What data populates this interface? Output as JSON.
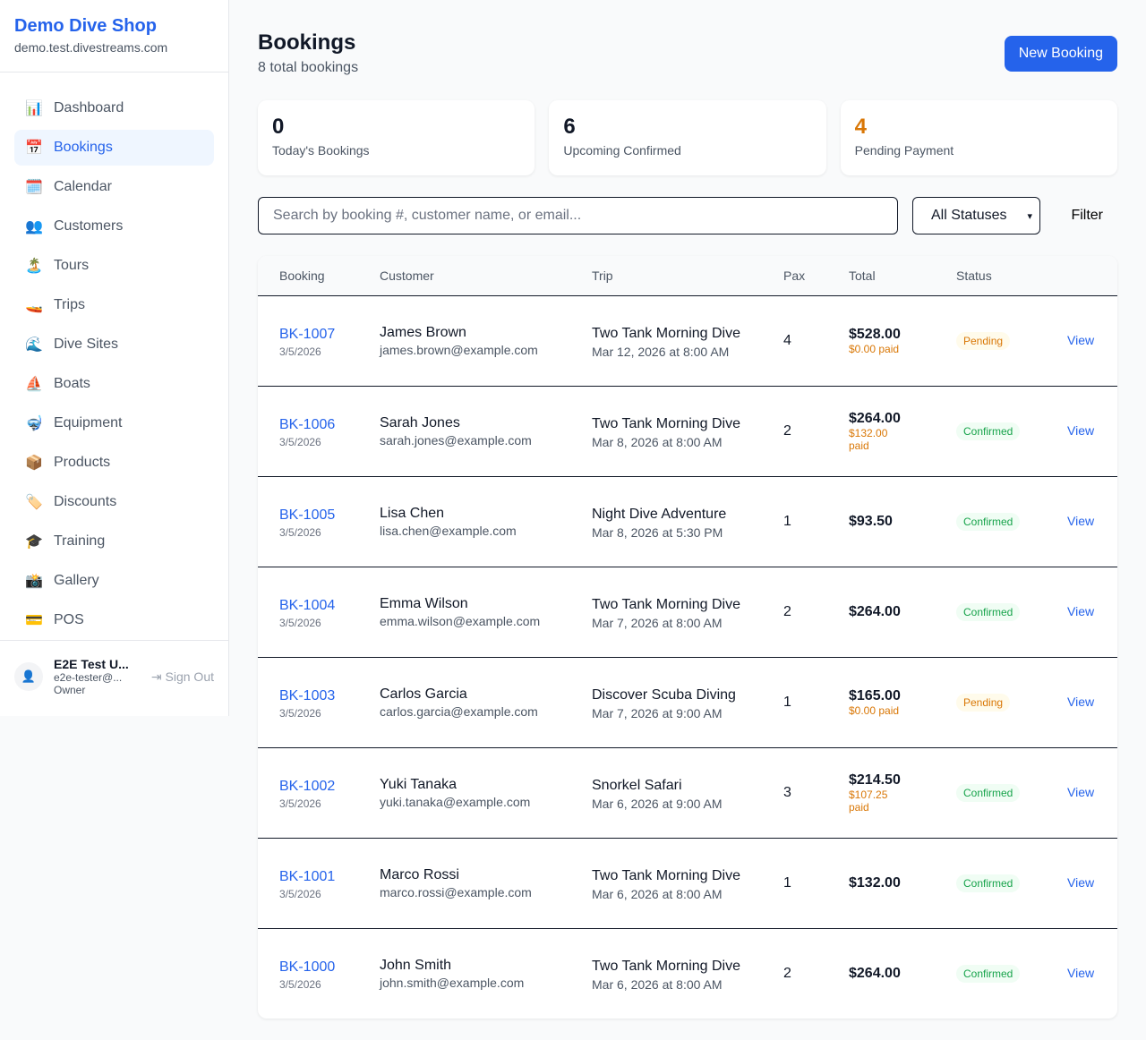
{
  "sidebar": {
    "shop_name": "Demo Dive Shop",
    "domain": "demo.test.divestreams.com",
    "items": [
      {
        "label": "Dashboard",
        "icon": "📊",
        "active": false
      },
      {
        "label": "Bookings",
        "icon": "📅",
        "active": true
      },
      {
        "label": "Calendar",
        "icon": "🗓️",
        "active": false
      },
      {
        "label": "Customers",
        "icon": "👥",
        "active": false
      },
      {
        "label": "Tours",
        "icon": "🏝️",
        "active": false
      },
      {
        "label": "Trips",
        "icon": "🚤",
        "active": false
      },
      {
        "label": "Dive Sites",
        "icon": "🌊",
        "active": false
      },
      {
        "label": "Boats",
        "icon": "⛵",
        "active": false
      },
      {
        "label": "Equipment",
        "icon": "🤿",
        "active": false
      },
      {
        "label": "Products",
        "icon": "📦",
        "active": false
      },
      {
        "label": "Discounts",
        "icon": "🏷️",
        "active": false
      },
      {
        "label": "Training",
        "icon": "🎓",
        "active": false
      },
      {
        "label": "Gallery",
        "icon": "📸",
        "active": false
      },
      {
        "label": "POS",
        "icon": "💳",
        "active": false
      }
    ],
    "user": {
      "name": "E2E Test U...",
      "email": "e2e-tester@...",
      "role": "Owner",
      "sign_out": "Sign Out"
    }
  },
  "header": {
    "title": "Bookings",
    "subtitle": "8 total bookings",
    "new_booking": "New Booking"
  },
  "stats": [
    {
      "value": "0",
      "label": "Today's Bookings",
      "color": "#111827"
    },
    {
      "value": "6",
      "label": "Upcoming Confirmed",
      "color": "#111827"
    },
    {
      "value": "4",
      "label": "Pending Payment",
      "color": "#d97706"
    }
  ],
  "filters": {
    "search_placeholder": "Search by booking #, customer name, or email...",
    "status": "All Statuses",
    "filter": "Filter"
  },
  "table": {
    "columns": [
      "Booking",
      "Customer",
      "Trip",
      "Pax",
      "Total",
      "Status",
      ""
    ],
    "rows": [
      {
        "id": "BK-1007",
        "date": "3/5/2026",
        "name": "James Brown",
        "email": "james.brown@example.com",
        "trip": "Two Tank Morning Dive",
        "when": "Mar 12, 2026 at 8:00 AM",
        "pax": "4",
        "total": "$528.00",
        "paid": "$0.00 paid",
        "status": "Pending",
        "action": "View"
      },
      {
        "id": "BK-1006",
        "date": "3/5/2026",
        "name": "Sarah Jones",
        "email": "sarah.jones@example.com",
        "trip": "Two Tank Morning Dive",
        "when": "Mar 8, 2026 at 8:00 AM",
        "pax": "2",
        "total": "$264.00",
        "paid": "$132.00 paid",
        "status": "Confirmed",
        "action": "View"
      },
      {
        "id": "BK-1005",
        "date": "3/5/2026",
        "name": "Lisa Chen",
        "email": "lisa.chen@example.com",
        "trip": "Night Dive Adventure",
        "when": "Mar 8, 2026 at 5:30 PM",
        "pax": "1",
        "total": "$93.50",
        "paid": null,
        "status": "Confirmed",
        "action": "View"
      },
      {
        "id": "BK-1004",
        "date": "3/5/2026",
        "name": "Emma Wilson",
        "email": "emma.wilson@example.com",
        "trip": "Two Tank Morning Dive",
        "when": "Mar 7, 2026 at 8:00 AM",
        "pax": "2",
        "total": "$264.00",
        "paid": null,
        "status": "Confirmed",
        "action": "View"
      },
      {
        "id": "BK-1003",
        "date": "3/5/2026",
        "name": "Carlos Garcia",
        "email": "carlos.garcia@example.com",
        "trip": "Discover Scuba Diving",
        "when": "Mar 7, 2026 at 9:00 AM",
        "pax": "1",
        "total": "$165.00",
        "paid": "$0.00 paid",
        "status": "Pending",
        "action": "View"
      },
      {
        "id": "BK-1002",
        "date": "3/5/2026",
        "name": "Yuki Tanaka",
        "email": "yuki.tanaka@example.com",
        "trip": "Snorkel Safari",
        "when": "Mar 6, 2026 at 9:00 AM",
        "pax": "3",
        "total": "$214.50",
        "paid": "$107.25 paid",
        "status": "Confirmed",
        "action": "View"
      },
      {
        "id": "BK-1001",
        "date": "3/5/2026",
        "name": "Marco Rossi",
        "email": "marco.rossi@example.com",
        "trip": "Two Tank Morning Dive",
        "when": "Mar 6, 2026 at 8:00 AM",
        "pax": "1",
        "total": "$132.00",
        "paid": null,
        "status": "Confirmed",
        "action": "View"
      },
      {
        "id": "BK-1000",
        "date": "3/5/2026",
        "name": "John Smith",
        "email": "john.smith@example.com",
        "trip": "Two Tank Morning Dive",
        "when": "Mar 6, 2026 at 8:00 AM",
        "pax": "2",
        "total": "$264.00",
        "paid": null,
        "status": "Confirmed",
        "action": "View"
      }
    ]
  },
  "status_colors": {
    "Pending": {
      "bg": "#fffbeb",
      "fg": "#d97706"
    },
    "Confirmed": {
      "bg": "#f0fdf4",
      "fg": "#16a34a"
    }
  }
}
